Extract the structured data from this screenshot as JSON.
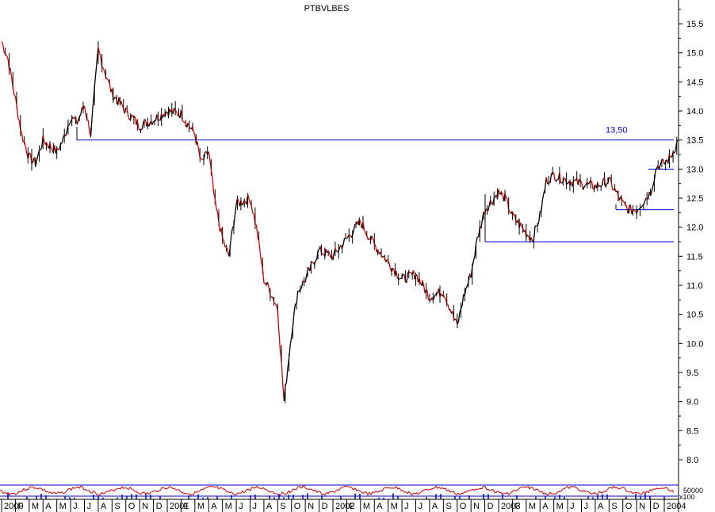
{
  "chart_data": {
    "type": "line",
    "title": "PTBVLBES",
    "xlabel": "",
    "ylabel": "",
    "ylim": [
      7.75,
      15.85
    ],
    "yticks": [
      8.0,
      8.5,
      9.0,
      9.5,
      10.0,
      10.5,
      11.0,
      11.5,
      12.0,
      12.5,
      13.0,
      13.5,
      14.0,
      14.5,
      15.0,
      15.5
    ],
    "x_range": [
      "2000-01",
      "2004-02"
    ],
    "x_tick_labels": [
      "2000",
      "F",
      "M",
      "A",
      "M",
      "J",
      "J",
      "A",
      "S",
      "O",
      "N",
      "D",
      "2001",
      "F",
      "M",
      "A",
      "M",
      "J",
      "J",
      "A",
      "S",
      "O",
      "N",
      "D",
      "2002",
      "F",
      "M",
      "A",
      "M",
      "J",
      "J",
      "A",
      "S",
      "O",
      "N",
      "D",
      "2003",
      "F",
      "M",
      "A",
      "M",
      "J",
      "J",
      "A",
      "S",
      "O",
      "N",
      "D",
      "2004"
    ],
    "series": [
      {
        "color_up": "#000000",
        "color_down": "#dd0000",
        "x": [
          "2000-01",
          "2000-01",
          "2000-02",
          "2000-02",
          "2000-03",
          "2000-03",
          "2000-04",
          "2000-05",
          "2000-05",
          "2000-06",
          "2000-06",
          "2000-07",
          "2000-07",
          "2000-08",
          "2000-08",
          "2000-09",
          "2000-10",
          "2000-11",
          "2000-12",
          "2001-01",
          "2001-02",
          "2001-03",
          "2001-03",
          "2001-04",
          "2001-04",
          "2001-05",
          "2001-05",
          "2001-06",
          "2001-07",
          "2001-07",
          "2001-08",
          "2001-08",
          "2001-09",
          "2001-09",
          "2001-10",
          "2001-10",
          "2001-11",
          "2001-12",
          "2002-01",
          "2002-02",
          "2002-03",
          "2002-03",
          "2002-04",
          "2002-05",
          "2002-06",
          "2002-07",
          "2002-08",
          "2002-09",
          "2002-10",
          "2002-10",
          "2002-11",
          "2002-11",
          "2002-12",
          "2003-01",
          "2003-01",
          "2003-02",
          "2003-03",
          "2003-03",
          "2003-04",
          "2003-04",
          "2003-05",
          "2003-06",
          "2003-07",
          "2003-08",
          "2003-09",
          "2003-10",
          "2003-10",
          "2003-11",
          "2003-12",
          "2003-12",
          "2004-01",
          "2004-01",
          "2004-02"
        ],
        "y": [
          15.2,
          14.9,
          14.2,
          13.6,
          13.2,
          13.1,
          13.5,
          13.3,
          13.5,
          13.9,
          13.8,
          14.1,
          13.6,
          15.05,
          14.7,
          14.3,
          14.0,
          13.75,
          13.85,
          14.0,
          13.95,
          13.6,
          13.1,
          13.3,
          12.4,
          11.8,
          11.5,
          12.4,
          12.5,
          12.0,
          11.1,
          10.9,
          10.6,
          9.0,
          10.2,
          10.9,
          11.1,
          11.6,
          11.5,
          11.8,
          12.1,
          11.9,
          11.7,
          11.4,
          11.1,
          11.2,
          10.8,
          10.9,
          10.3,
          10.8,
          11.2,
          11.8,
          12.3,
          12.6,
          12.5,
          12.2,
          11.9,
          11.8,
          12.2,
          12.8,
          12.9,
          12.8,
          12.75,
          12.7,
          12.8,
          12.4,
          12.3,
          12.3,
          12.6,
          13.05,
          13.1,
          13.2,
          13.5
        ]
      }
    ],
    "annotations": [
      {
        "text": "13,50",
        "type": "horizontal-line",
        "y": 13.5
      },
      {
        "type": "horizontal-line",
        "y": 13.0
      },
      {
        "type": "horizontal-line",
        "y": 12.3
      },
      {
        "type": "horizontal-line",
        "y": 11.75
      }
    ],
    "indicator": {
      "label": "50000",
      "scale_label": "x100"
    },
    "legend": "none",
    "grid": false
  }
}
